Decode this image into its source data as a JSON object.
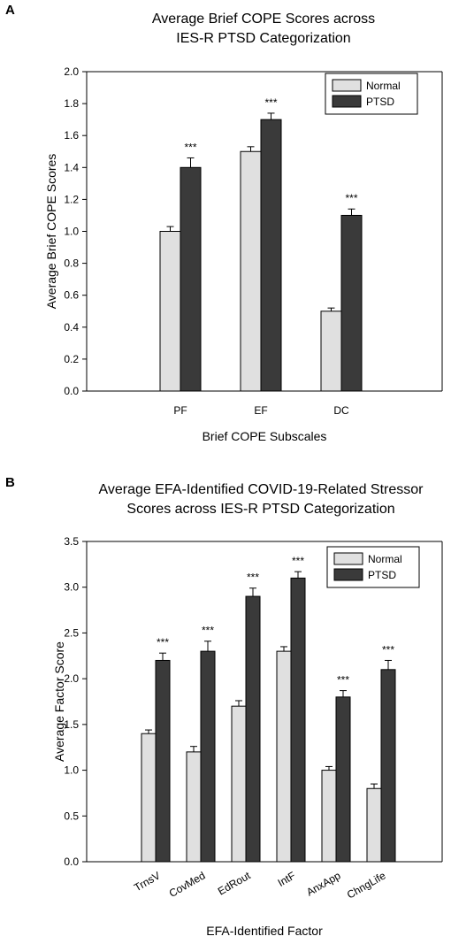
{
  "chart_data": [
    {
      "panel_label": "A",
      "type": "bar",
      "title_lines": [
        "Average Brief COPE Scores across",
        "IES-R PTSD Categorization"
      ],
      "xlabel": "Brief COPE Subscales",
      "ylabel": "Average Brief COPE Scores",
      "categories": [
        "PF",
        "EF",
        "DC"
      ],
      "ylim": [
        0,
        2.0
      ],
      "yticks": [
        "0.0",
        "0.2",
        "0.4",
        "0.6",
        "0.8",
        "1.0",
        "1.2",
        "1.4",
        "1.6",
        "1.8",
        "2.0"
      ],
      "legend_position": "top-right",
      "grid": false,
      "series": [
        {
          "name": "Normal",
          "color": "#e0e0e0",
          "values": [
            1.0,
            1.5,
            0.5
          ],
          "errors": [
            0.03,
            0.03,
            0.02
          ],
          "annotations": [
            "",
            "",
            ""
          ]
        },
        {
          "name": "PTSD",
          "color": "#3a3a3a",
          "values": [
            1.4,
            1.7,
            1.1
          ],
          "errors": [
            0.06,
            0.04,
            0.04
          ],
          "annotations": [
            "***",
            "***",
            "***"
          ]
        }
      ]
    },
    {
      "panel_label": "B",
      "type": "bar",
      "title_lines": [
        "Average EFA-Identified COVID-19-Related Stressor",
        "Scores across IES-R PTSD Categorization"
      ],
      "xlabel": "EFA-Identified Factor",
      "ylabel": "Average Factor Score",
      "categories": [
        "TrnsV",
        "CovMed",
        "EdRout",
        "IntF",
        "AnxApp",
        "ChngLife"
      ],
      "ylim": [
        0,
        3.5
      ],
      "yticks": [
        "0.0",
        "0.5",
        "1.0",
        "1.5",
        "2.0",
        "2.5",
        "3.0",
        "3.5"
      ],
      "legend_position": "top-right",
      "grid": false,
      "series": [
        {
          "name": "Normal",
          "color": "#e0e0e0",
          "values": [
            1.4,
            1.2,
            1.7,
            2.3,
            1.0,
            0.8
          ],
          "errors": [
            0.04,
            0.06,
            0.06,
            0.05,
            0.04,
            0.05
          ],
          "annotations": [
            "",
            "",
            "",
            "",
            "",
            ""
          ]
        },
        {
          "name": "PTSD",
          "color": "#3a3a3a",
          "values": [
            2.2,
            2.3,
            2.9,
            3.1,
            1.8,
            2.1
          ],
          "errors": [
            0.08,
            0.11,
            0.09,
            0.07,
            0.07,
            0.1
          ],
          "annotations": [
            "***",
            "***",
            "***",
            "***",
            "***",
            "***"
          ]
        }
      ]
    }
  ]
}
